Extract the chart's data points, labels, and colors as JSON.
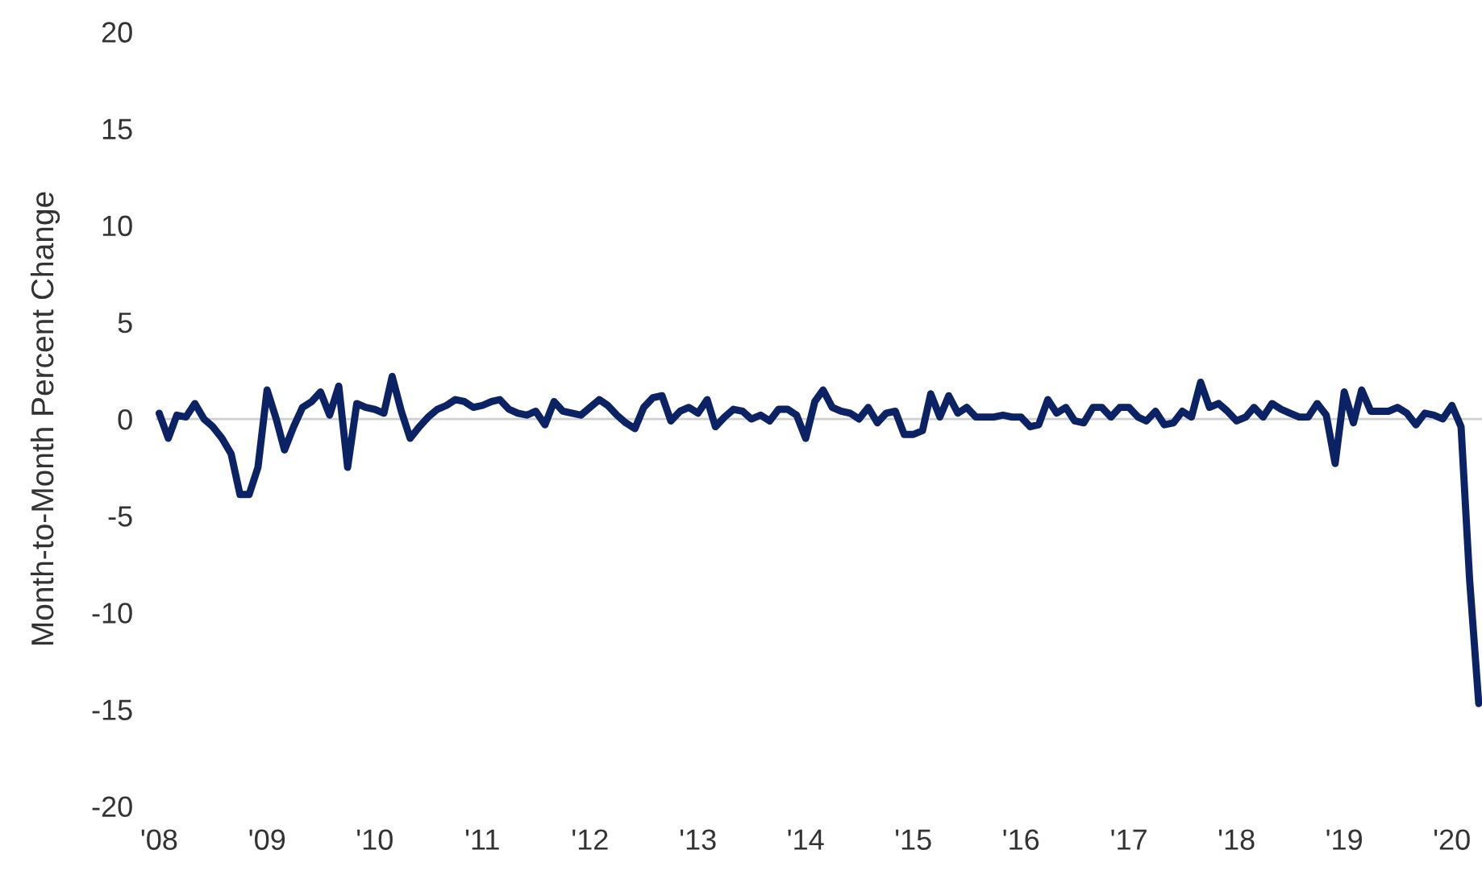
{
  "chart_data": {
    "type": "line",
    "ylabel": "Month-to-Month Percent Change",
    "x": [
      "2008-01",
      "2008-02",
      "2008-03",
      "2008-04",
      "2008-05",
      "2008-06",
      "2008-07",
      "2008-08",
      "2008-09",
      "2008-10",
      "2008-11",
      "2008-12",
      "2009-01",
      "2009-02",
      "2009-03",
      "2009-04",
      "2009-05",
      "2009-06",
      "2009-07",
      "2009-08",
      "2009-09",
      "2009-10",
      "2009-11",
      "2009-12",
      "2010-01",
      "2010-02",
      "2010-03",
      "2010-04",
      "2010-05",
      "2010-06",
      "2010-07",
      "2010-08",
      "2010-09",
      "2010-10",
      "2010-11",
      "2010-12",
      "2011-01",
      "2011-02",
      "2011-03",
      "2011-04",
      "2011-05",
      "2011-06",
      "2011-07",
      "2011-08",
      "2011-09",
      "2011-10",
      "2011-11",
      "2011-12",
      "2012-01",
      "2012-02",
      "2012-03",
      "2012-04",
      "2012-05",
      "2012-06",
      "2012-07",
      "2012-08",
      "2012-09",
      "2012-10",
      "2012-11",
      "2012-12",
      "2013-01",
      "2013-02",
      "2013-03",
      "2013-04",
      "2013-05",
      "2013-06",
      "2013-07",
      "2013-08",
      "2013-09",
      "2013-10",
      "2013-11",
      "2013-12",
      "2014-01",
      "2014-02",
      "2014-03",
      "2014-04",
      "2014-05",
      "2014-06",
      "2014-07",
      "2014-08",
      "2014-09",
      "2014-10",
      "2014-11",
      "2014-12",
      "2015-01",
      "2015-02",
      "2015-03",
      "2015-04",
      "2015-05",
      "2015-06",
      "2015-07",
      "2015-08",
      "2015-09",
      "2015-10",
      "2015-11",
      "2015-12",
      "2016-01",
      "2016-02",
      "2016-03",
      "2016-04",
      "2016-05",
      "2016-06",
      "2016-07",
      "2016-08",
      "2016-09",
      "2016-10",
      "2016-11",
      "2016-12",
      "2017-01",
      "2017-02",
      "2017-03",
      "2017-04",
      "2017-05",
      "2017-06",
      "2017-07",
      "2017-08",
      "2017-09",
      "2017-10",
      "2017-11",
      "2017-12",
      "2018-01",
      "2018-02",
      "2018-03",
      "2018-04",
      "2018-05",
      "2018-06",
      "2018-07",
      "2018-08",
      "2018-09",
      "2018-10",
      "2018-11",
      "2018-12",
      "2019-01",
      "2019-02",
      "2019-03",
      "2019-04",
      "2019-05",
      "2019-06",
      "2019-07",
      "2019-08",
      "2019-09",
      "2019-10",
      "2019-11",
      "2019-12",
      "2020-01",
      "2020-02",
      "2020-03",
      "2020-04"
    ],
    "series": [
      {
        "color": "#0b2265",
        "values": [
          0.3,
          -1.0,
          0.2,
          0.1,
          0.8,
          0.0,
          -0.4,
          -1.0,
          -1.8,
          -3.9,
          -3.9,
          -2.5,
          1.5,
          0.0,
          -1.6,
          -0.4,
          0.6,
          0.9,
          1.4,
          0.2,
          1.7,
          -2.5,
          0.8,
          0.6,
          0.5,
          0.3,
          2.2,
          0.4,
          -1.0,
          -0.4,
          0.1,
          0.5,
          0.7,
          1.0,
          0.9,
          0.6,
          0.7,
          0.9,
          1.0,
          0.5,
          0.3,
          0.2,
          0.4,
          -0.3,
          0.9,
          0.4,
          0.3,
          0.2,
          0.6,
          1.0,
          0.7,
          0.2,
          -0.2,
          -0.5,
          0.6,
          1.1,
          1.2,
          -0.1,
          0.4,
          0.6,
          0.3,
          1.0,
          -0.4,
          0.1,
          0.5,
          0.4,
          0.0,
          0.2,
          -0.1,
          0.5,
          0.5,
          0.2,
          -1.0,
          0.9,
          1.5,
          0.6,
          0.4,
          0.3,
          0.0,
          0.6,
          -0.2,
          0.3,
          0.4,
          -0.8,
          -0.8,
          -0.6,
          1.3,
          0.1,
          1.2,
          0.3,
          0.6,
          0.1,
          0.1,
          0.1,
          0.2,
          0.1,
          0.1,
          -0.4,
          -0.3,
          1.0,
          0.3,
          0.6,
          -0.1,
          -0.2,
          0.6,
          0.6,
          0.1,
          0.6,
          0.6,
          0.1,
          -0.1,
          0.4,
          -0.3,
          -0.2,
          0.4,
          0.1,
          1.9,
          0.6,
          0.8,
          0.4,
          -0.1,
          0.1,
          0.6,
          0.1,
          0.8,
          0.5,
          0.3,
          0.1,
          0.1,
          0.8,
          0.2,
          -2.3,
          1.4,
          -0.2,
          1.5,
          0.4,
          0.4,
          0.4,
          0.6,
          0.3,
          -0.3,
          0.3,
          0.2,
          0.0,
          0.7,
          -0.4,
          -8.3,
          -14.7
        ]
      }
    ],
    "xlim": [
      "2007-12-20",
      "2020-04-12"
    ],
    "xticks": [
      {
        "value": "2008-01-01",
        "label": "'08"
      },
      {
        "value": "2009-01-01",
        "label": "'09"
      },
      {
        "value": "2010-01-01",
        "label": "'10"
      },
      {
        "value": "2011-01-01",
        "label": "'11"
      },
      {
        "value": "2012-01-01",
        "label": "'12"
      },
      {
        "value": "2013-01-01",
        "label": "'13"
      },
      {
        "value": "2014-01-01",
        "label": "'14"
      },
      {
        "value": "2015-01-01",
        "label": "'15"
      },
      {
        "value": "2016-01-01",
        "label": "'16"
      },
      {
        "value": "2017-01-01",
        "label": "'17"
      },
      {
        "value": "2018-01-01",
        "label": "'18"
      },
      {
        "value": "2019-01-01",
        "label": "'19"
      },
      {
        "value": "2020-01-01",
        "label": "'20"
      }
    ],
    "ylim": [
      -20,
      20
    ],
    "yticks": [
      -20,
      -15,
      -10,
      -5,
      0,
      5,
      10,
      15,
      20
    ],
    "ref_lines": [
      {
        "axis": "y",
        "value": 0,
        "color": "#d0d0d0"
      }
    ],
    "grid": false,
    "legend": false,
    "marker": "none",
    "line_style": "solid"
  }
}
